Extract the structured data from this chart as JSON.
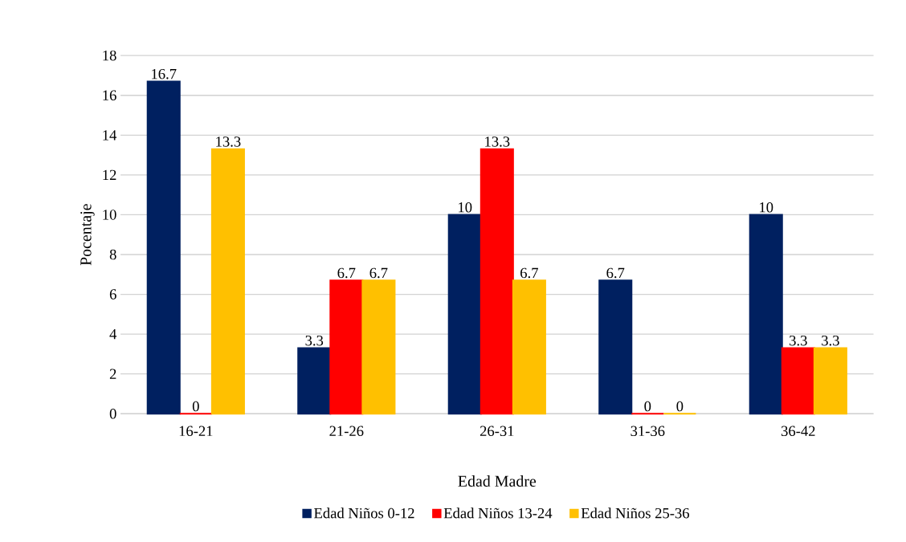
{
  "chart_data": {
    "type": "bar",
    "xlabel": "Edad Madre",
    "ylabel": "Pocentaje",
    "categories": [
      "16-21",
      "21-26",
      "26-31",
      "31-36",
      "36-42"
    ],
    "series": [
      {
        "name": "Edad Niños 0-12",
        "color": "#002060",
        "values": [
          16.7,
          3.3,
          10,
          6.7,
          10
        ]
      },
      {
        "name": "Edad Niños 13-24",
        "color": "#ff0000",
        "values": [
          0,
          6.7,
          13.3,
          0,
          3.3
        ]
      },
      {
        "name": "Edad Niños 25-36",
        "color": "#ffc000",
        "values": [
          13.3,
          6.7,
          6.7,
          0,
          3.3
        ]
      }
    ],
    "ylim": [
      0,
      18
    ],
    "yticks": [
      0,
      2,
      4,
      6,
      8,
      10,
      12,
      14,
      16,
      18
    ],
    "grid": "y",
    "legend": "bottom",
    "data_labels": true
  }
}
